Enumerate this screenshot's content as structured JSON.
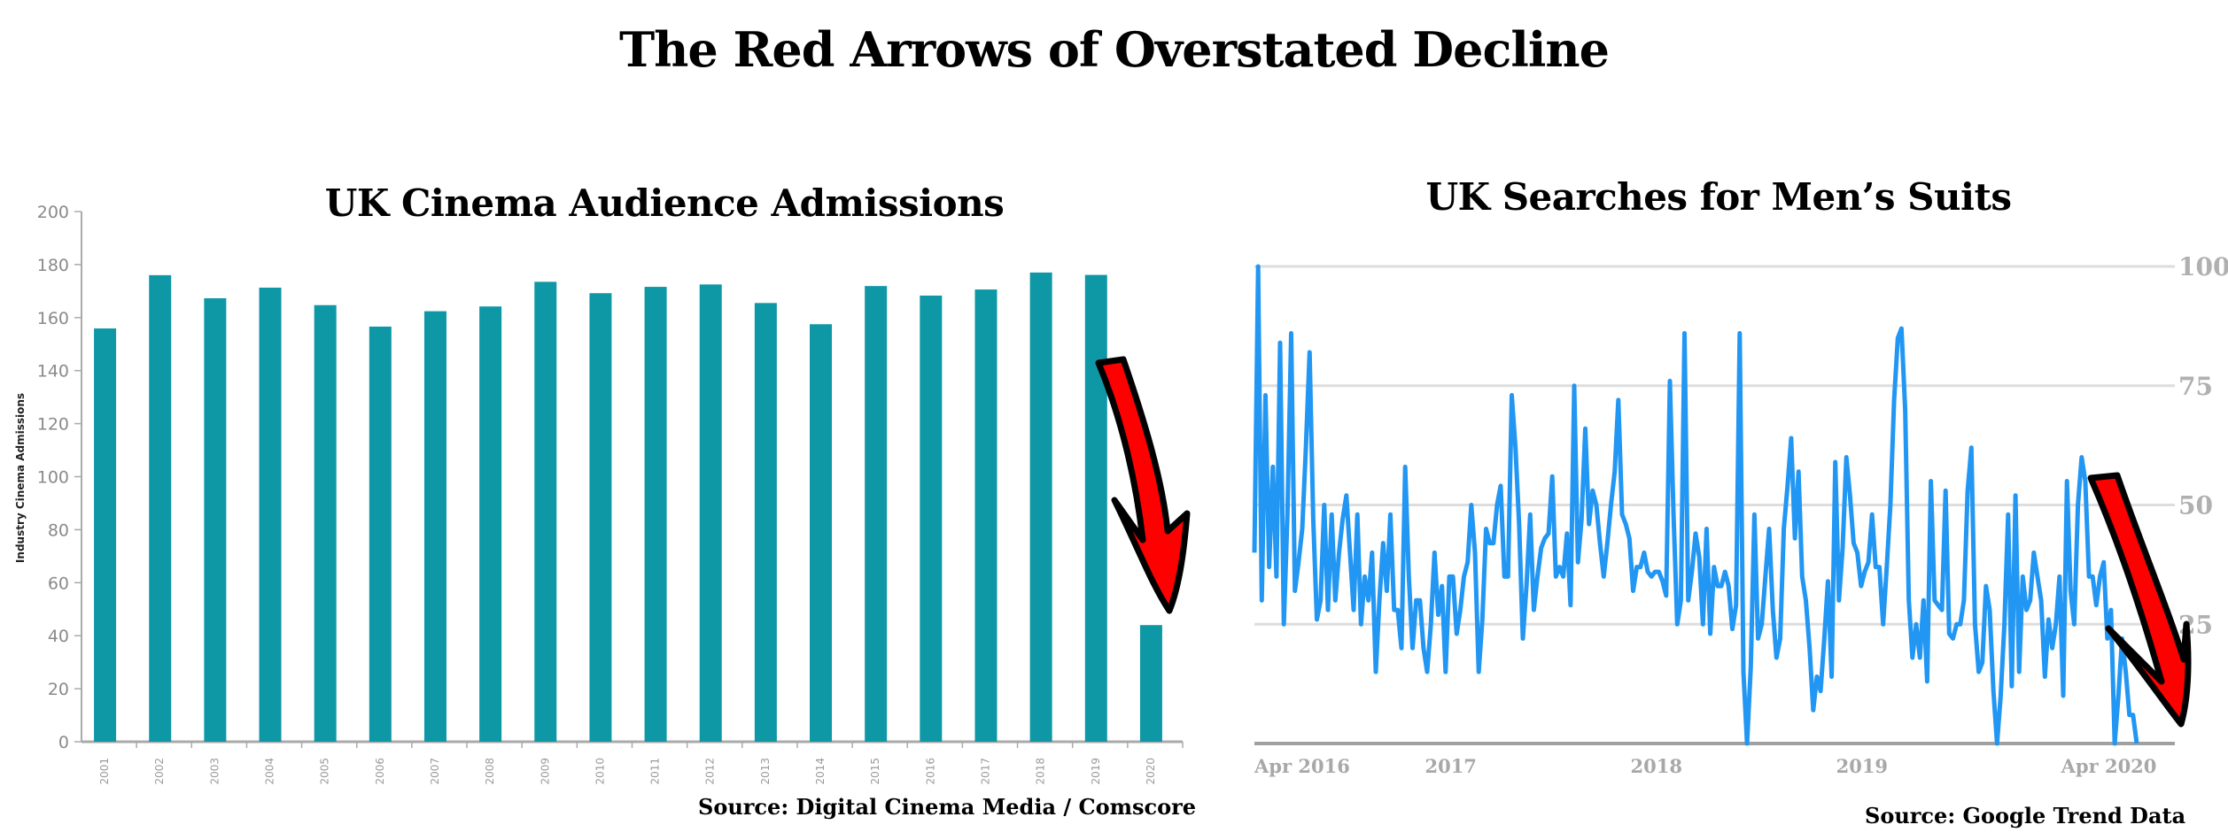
{
  "title": "The Red Arrows of Overstated Decline",
  "colors": {
    "bar": "#0e98a6",
    "line": "#2196f3",
    "arrow": "#ff0000",
    "arrow_outline": "#000000",
    "grid": "#dddddd",
    "axis": "#aaaaaa"
  },
  "chart_data": [
    {
      "type": "bar",
      "title": "UK Cinema Audience Admissions",
      "ylabel": "Industry Cinema Admissions",
      "xlabel": "",
      "ylim": [
        0,
        200
      ],
      "yticks": [
        "0",
        "20",
        "40",
        "60",
        "80",
        "100",
        "120",
        "140",
        "160",
        "180",
        "200"
      ],
      "categories": [
        "2001",
        "2002",
        "2003",
        "2004",
        "2005",
        "2006",
        "2007",
        "2008",
        "2009",
        "2010",
        "2011",
        "2012",
        "2013",
        "2014",
        "2015",
        "2016",
        "2017",
        "2018",
        "2019",
        "2020"
      ],
      "values": [
        155.9,
        176.0,
        167.3,
        171.3,
        164.7,
        156.6,
        162.4,
        164.2,
        173.5,
        169.2,
        171.6,
        172.5,
        165.5,
        157.5,
        171.9,
        168.3,
        170.6,
        177.0,
        176.1,
        44.0
      ],
      "source": "Source: Digital Cinema Media / Comscore",
      "annotation": "red-arrow pointing down to 2020 bar"
    },
    {
      "type": "line",
      "title": "UK Searches for Men’s Suits",
      "ylim": [
        0,
        100
      ],
      "yticks": [
        "25",
        "50",
        "75",
        "100"
      ],
      "xticks": [
        "Apr 2016",
        "2017",
        "2018",
        "2019",
        "Apr 2020"
      ],
      "xtick_positions": [
        0,
        0.214,
        0.438,
        0.662,
        0.931
      ],
      "series": [
        {
          "name": "Men's suits",
          "values": [
            40,
            100,
            30,
            73,
            37,
            58,
            35,
            84,
            25,
            48,
            86,
            32,
            38,
            45,
            62,
            82,
            47,
            26,
            30,
            50,
            28,
            48,
            30,
            40,
            47,
            52,
            40,
            28,
            48,
            25,
            35,
            30,
            40,
            15,
            30,
            42,
            32,
            48,
            28,
            28,
            20,
            58,
            35,
            20,
            30,
            30,
            20,
            15,
            25,
            40,
            27,
            33,
            15,
            35,
            35,
            23,
            28,
            35,
            38,
            50,
            40,
            15,
            26,
            45,
            42,
            42,
            50,
            54,
            35,
            35,
            73,
            62,
            46,
            22,
            33,
            48,
            28,
            35,
            41,
            43,
            44,
            56,
            35,
            37,
            35,
            44,
            29,
            75,
            38,
            47,
            66,
            46,
            53,
            50,
            42,
            35,
            42,
            50,
            57,
            72,
            48,
            46,
            43,
            32,
            37,
            37,
            40,
            36,
            35,
            36,
            36,
            34,
            31,
            76,
            48,
            25,
            30,
            86,
            30,
            36,
            44,
            39,
            25,
            45,
            23,
            37,
            33,
            33,
            36,
            33,
            24,
            29,
            86,
            15,
            0,
            16,
            48,
            22,
            25,
            35,
            45,
            28,
            18,
            22,
            45,
            54,
            64,
            43,
            57,
            35,
            30,
            20,
            7,
            14,
            11,
            22,
            34,
            14,
            59,
            30,
            41,
            60,
            52,
            42,
            40,
            33,
            36,
            38,
            48,
            37,
            37,
            25,
            37,
            50,
            72,
            85,
            87,
            70,
            30,
            18,
            25,
            18,
            30,
            13,
            55,
            30,
            29,
            28,
            53,
            23,
            22,
            25,
            25,
            30,
            53,
            62,
            25,
            15,
            17,
            33,
            28,
            11,
            0,
            10,
            25,
            48,
            12,
            52,
            15,
            35,
            28,
            30,
            40,
            35,
            30,
            14,
            26,
            20,
            25,
            35,
            10,
            55,
            32,
            25,
            50,
            60,
            55,
            35,
            35,
            29,
            35,
            38,
            22,
            28,
            0,
            10,
            22,
            15,
            6,
            6,
            0
          ]
        }
      ],
      "source": "Source: Google Trend Data",
      "annotation": "red-arrow pointing down to end of series"
    }
  ]
}
